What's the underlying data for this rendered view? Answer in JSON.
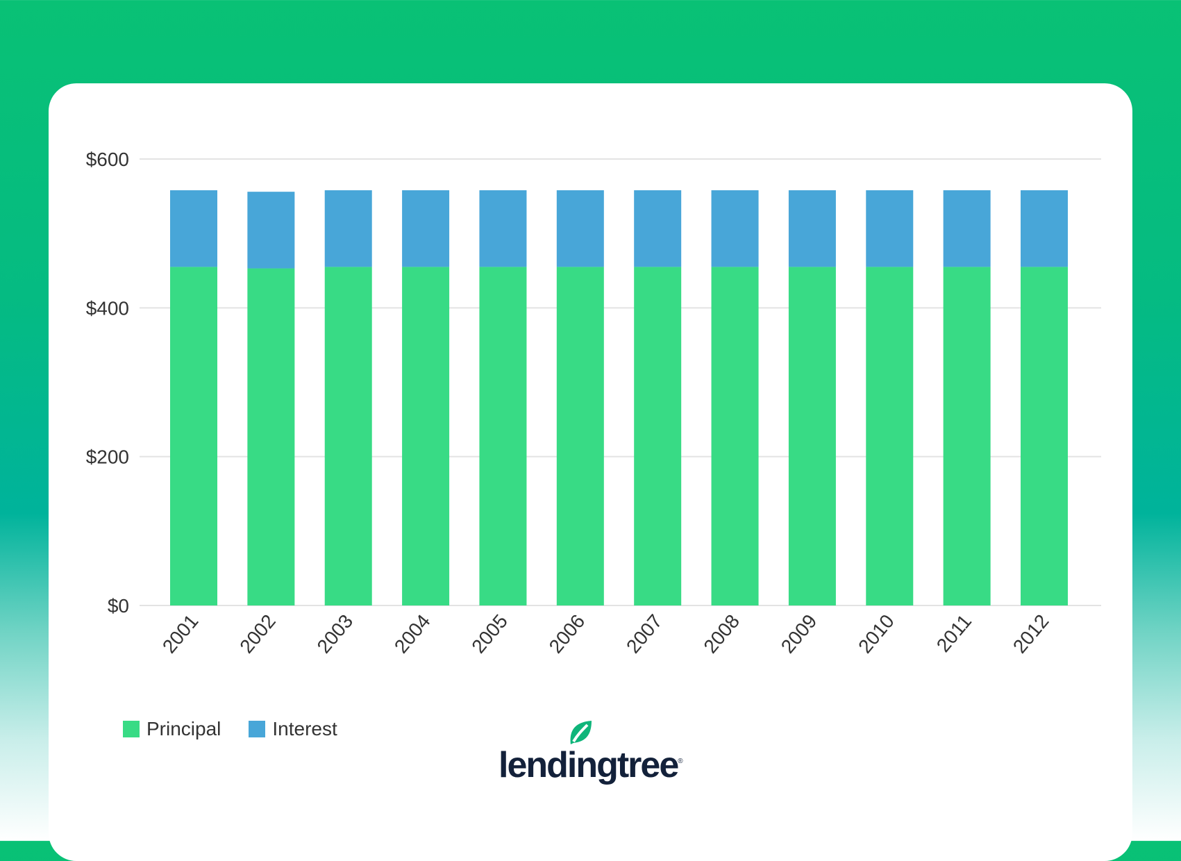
{
  "chart_data": {
    "type": "bar",
    "stacked": true,
    "categories": [
      "2001",
      "2002",
      "2003",
      "2004",
      "2005",
      "2006",
      "2007",
      "2008",
      "2009",
      "2010",
      "2011",
      "2012"
    ],
    "series": [
      {
        "name": "Principal",
        "color": "#38db85",
        "values": [
          455,
          453,
          455,
          455,
          455,
          455,
          455,
          455,
          455,
          455,
          455,
          455
        ]
      },
      {
        "name": "Interest",
        "color": "#48a6d8",
        "values": [
          103,
          103,
          103,
          103,
          103,
          103,
          103,
          103,
          103,
          103,
          103,
          103
        ]
      }
    ],
    "title": "",
    "xlabel": "",
    "ylabel": "",
    "ylim": [
      0,
      600
    ],
    "yticks": [
      0,
      200,
      400,
      600
    ],
    "ytick_labels": [
      "$0",
      "$200",
      "$400",
      "$600"
    ],
    "grid": true,
    "legend": "bottom-left"
  },
  "branding": {
    "logo_text": "lendingtree",
    "logo_mark": "®"
  }
}
